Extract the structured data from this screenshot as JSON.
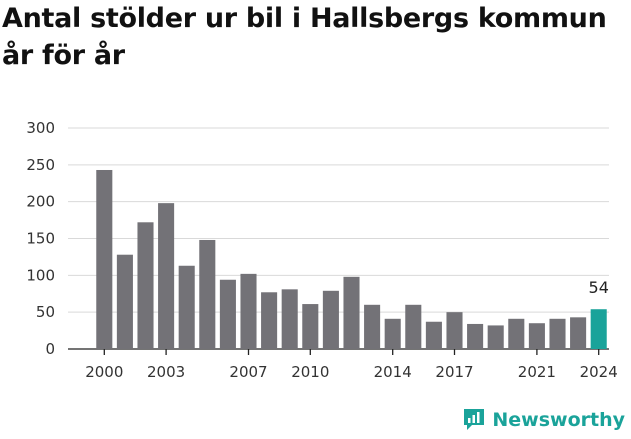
{
  "title": "Antal stölder ur bil i Hallsbergs kommun år för år",
  "brand": {
    "name": "Newsworthy",
    "color": "#1aa39a"
  },
  "chart_data": {
    "type": "bar",
    "title": "Antal stölder ur bil i Hallsbergs kommun år för år",
    "xlabel": "",
    "ylabel": "",
    "x": [
      2000,
      2001,
      2002,
      2003,
      2004,
      2005,
      2006,
      2007,
      2008,
      2009,
      2010,
      2011,
      2012,
      2013,
      2014,
      2015,
      2016,
      2017,
      2018,
      2019,
      2020,
      2021,
      2022,
      2023,
      2024
    ],
    "values": [
      243,
      128,
      172,
      198,
      113,
      148,
      94,
      102,
      77,
      81,
      61,
      79,
      98,
      60,
      41,
      60,
      37,
      50,
      34,
      32,
      41,
      35,
      41,
      43,
      54
    ],
    "x_tick_labels": [
      "2000",
      "2003",
      "2007",
      "2010",
      "2014",
      "2017",
      "2021",
      "2024"
    ],
    "y_ticks": [
      0,
      50,
      100,
      150,
      200,
      250,
      300
    ],
    "ylim": [
      0,
      300
    ],
    "grid": true,
    "legend": "none",
    "bar_color": "#737277",
    "highlight_color": "#1aa39a",
    "highlight_year": 2024,
    "value_label": "54"
  }
}
